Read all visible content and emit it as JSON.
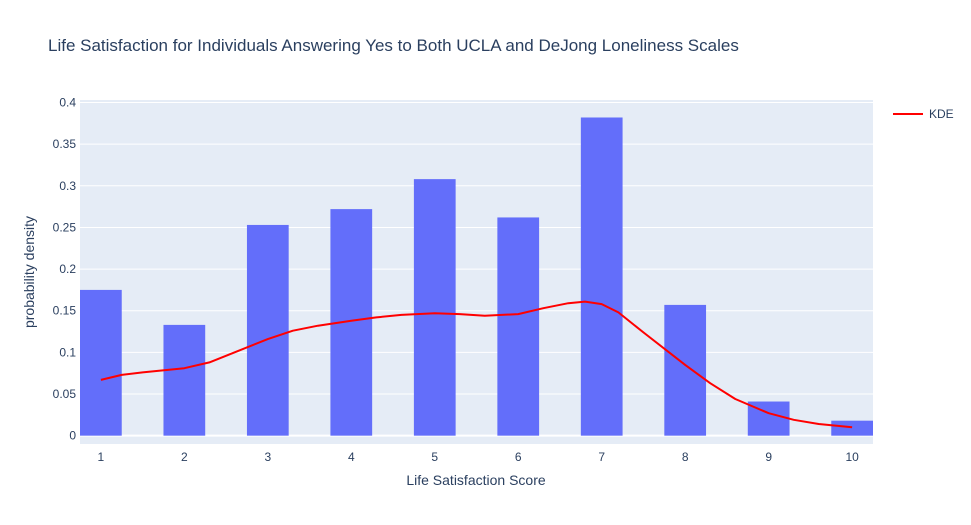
{
  "chart_data": {
    "type": "bar",
    "title": "Life Satisfaction for Individuals Answering Yes to Both UCLA and DeJong Loneliness Scales",
    "xlabel": "Life Satisfaction Score",
    "ylabel": "probability density",
    "x_ticks": [
      "1",
      "2",
      "3",
      "4",
      "5",
      "6",
      "7",
      "8",
      "9",
      "10"
    ],
    "y_ticks": [
      "0",
      "0.05",
      "0.1",
      "0.15",
      "0.2",
      "0.25",
      "0.3",
      "0.35",
      "0.4"
    ],
    "y_tick_values": [
      0,
      0.05,
      0.1,
      0.15,
      0.2,
      0.25,
      0.3,
      0.35,
      0.4
    ],
    "xlim": [
      0.75,
      10.25
    ],
    "ylim": [
      -0.01,
      0.403
    ],
    "grid": true,
    "legend_position": "top-right",
    "bar_color": "#636efa",
    "line_color": "#ff0000",
    "plot_bg": "#e5ecf6",
    "bars": {
      "x": [
        1,
        2,
        3,
        4,
        5,
        6,
        7,
        8,
        9,
        10
      ],
      "values": [
        0.175,
        0.133,
        0.253,
        0.272,
        0.308,
        0.262,
        0.382,
        0.157,
        0.041,
        0.018
      ]
    },
    "series": [
      {
        "name": "KDE",
        "x": [
          1,
          1.25,
          1.5,
          2,
          2.3,
          2.6,
          3,
          3.3,
          3.6,
          4,
          4.3,
          4.6,
          5,
          5.3,
          5.6,
          6,
          6.3,
          6.6,
          6.8,
          7,
          7.2,
          7.5,
          8,
          8.3,
          8.6,
          9,
          9.3,
          9.6,
          10
        ],
        "values": [
          0.067,
          0.073,
          0.076,
          0.081,
          0.088,
          0.1,
          0.116,
          0.126,
          0.132,
          0.138,
          0.142,
          0.145,
          0.147,
          0.146,
          0.144,
          0.146,
          0.153,
          0.159,
          0.161,
          0.158,
          0.148,
          0.124,
          0.085,
          0.063,
          0.044,
          0.027,
          0.019,
          0.014,
          0.01
        ]
      }
    ]
  }
}
